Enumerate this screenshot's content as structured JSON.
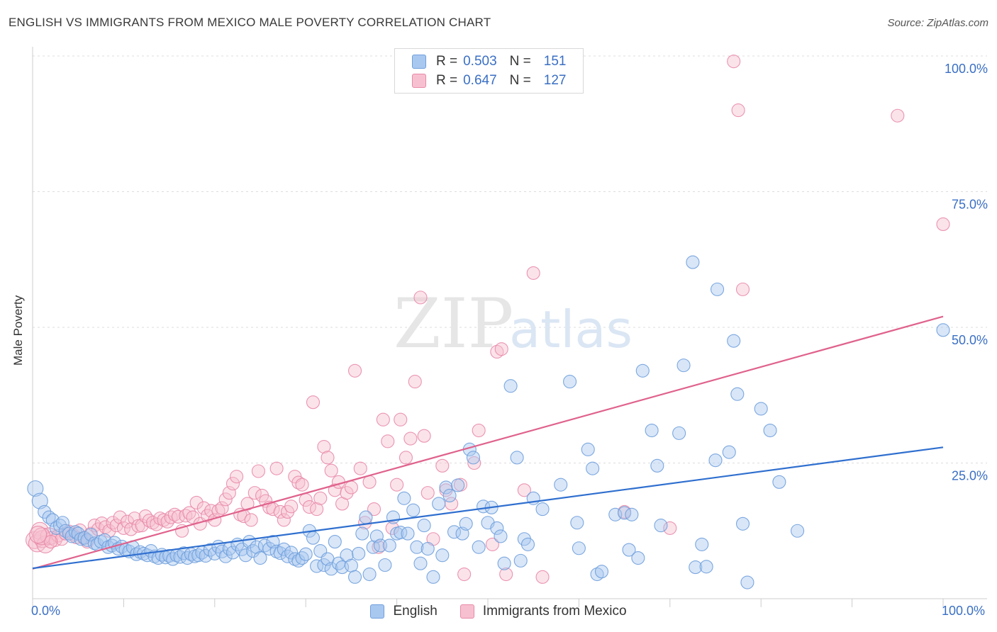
{
  "title": "ENGLISH VS IMMIGRANTS FROM MEXICO MALE POVERTY CORRELATION CHART",
  "source": "Source: ZipAtlas.com",
  "watermark": {
    "zip": "ZIP",
    "atlas": "atlas"
  },
  "legend": {
    "rows": [
      {
        "r_label": "R = ",
        "r_value": "0.503",
        "n_label": "N = ",
        "n_value": "151",
        "color": "#a9c8f0",
        "edge": "#6f9fdc"
      },
      {
        "r_label": "R = ",
        "r_value": "0.647",
        "n_label": "N = ",
        "n_value": "127",
        "color": "#f7c0d0",
        "edge": "#e88aa8"
      }
    ]
  },
  "bottom_legend": {
    "english": "English",
    "mexico": "Immigrants from Mexico"
  },
  "chart_data": {
    "type": "scatter",
    "ylabel": "Male Poverty",
    "xlabel": "",
    "xlim": [
      0,
      100
    ],
    "ylim": [
      0,
      100
    ],
    "x_tick_labels": {
      "left": "0.0%",
      "right": "100.0%"
    },
    "y_tick_labels": [
      "100.0%",
      "75.0%",
      "50.0%",
      "25.0%"
    ],
    "y_tick_values": [
      100,
      75,
      50,
      25
    ],
    "colors": {
      "english": "#6f9fdc",
      "english_fill": "#a9c8f0",
      "english_line": "#2f6fcf",
      "mexico": "#e88aa8",
      "mexico_fill": "#f7c0d0",
      "mexico_line": "#e0628c"
    },
    "series": [
      {
        "name": "English",
        "trend": {
          "x": [
            0,
            100
          ],
          "y": [
            5.6,
            27.9
          ]
        },
        "points": [
          [
            0.3,
            20.3
          ],
          [
            0.8,
            18
          ],
          [
            1.3,
            16
          ],
          [
            1.8,
            15
          ],
          [
            2.2,
            14.5
          ],
          [
            2.6,
            13
          ],
          [
            3,
            13.5
          ],
          [
            3.3,
            14
          ],
          [
            3.6,
            12.5
          ],
          [
            4,
            12
          ],
          [
            4.3,
            11.5
          ],
          [
            4.7,
            12.3
          ],
          [
            5,
            12
          ],
          [
            5.3,
            11
          ],
          [
            5.7,
            11.2
          ],
          [
            6,
            10.8
          ],
          [
            6.4,
            11.8
          ],
          [
            6.8,
            10.2
          ],
          [
            7.1,
            10
          ],
          [
            7.5,
            10.5
          ],
          [
            7.9,
            10.8
          ],
          [
            8.3,
            9.5
          ],
          [
            8.7,
            9.8
          ],
          [
            9,
            10.3
          ],
          [
            9.4,
            9.2
          ],
          [
            9.8,
            9.6
          ],
          [
            10.2,
            9
          ],
          [
            10.6,
            8.7
          ],
          [
            11,
            9.5
          ],
          [
            11.4,
            8.2
          ],
          [
            11.8,
            8.6
          ],
          [
            12.2,
            8.3
          ],
          [
            12.6,
            8
          ],
          [
            13,
            8.8
          ],
          [
            13.4,
            7.8
          ],
          [
            13.8,
            7.5
          ],
          [
            14.2,
            8.1
          ],
          [
            14.6,
            7.6
          ],
          [
            15,
            7.9
          ],
          [
            15.4,
            7.3
          ],
          [
            15.8,
            8
          ],
          [
            16.2,
            7.7
          ],
          [
            16.6,
            8.4
          ],
          [
            17,
            7.5
          ],
          [
            17.4,
            8.2
          ],
          [
            17.8,
            7.8
          ],
          [
            18.2,
            8
          ],
          [
            18.6,
            8.5
          ],
          [
            19,
            7.9
          ],
          [
            19.5,
            9
          ],
          [
            20,
            8.3
          ],
          [
            20.4,
            9.6
          ],
          [
            20.8,
            8.7
          ],
          [
            21.2,
            7.8
          ],
          [
            21.6,
            9.2
          ],
          [
            22,
            8.5
          ],
          [
            22.5,
            10
          ],
          [
            23,
            9.1
          ],
          [
            23.4,
            8
          ],
          [
            23.8,
            10.5
          ],
          [
            24.2,
            8.8
          ],
          [
            24.6,
            9.5
          ],
          [
            25,
            7.5
          ],
          [
            25.5,
            9.8
          ],
          [
            26,
            9.2
          ],
          [
            26.4,
            10.5
          ],
          [
            26.8,
            8.7
          ],
          [
            27.2,
            8.4
          ],
          [
            27.6,
            9.1
          ],
          [
            28,
            7.8
          ],
          [
            28.4,
            8.5
          ],
          [
            28.8,
            7.3
          ],
          [
            29.2,
            7
          ],
          [
            29.6,
            7.5
          ],
          [
            30,
            8.2
          ],
          [
            30.4,
            12.5
          ],
          [
            30.8,
            11.2
          ],
          [
            31.2,
            6
          ],
          [
            31.6,
            8.8
          ],
          [
            32,
            6.2
          ],
          [
            32.4,
            7.3
          ],
          [
            32.8,
            5.5
          ],
          [
            33.2,
            10.5
          ],
          [
            33.6,
            6.5
          ],
          [
            34,
            5.8
          ],
          [
            34.5,
            8
          ],
          [
            35,
            6.1
          ],
          [
            35.4,
            4
          ],
          [
            35.8,
            8.3
          ],
          [
            36.2,
            12
          ],
          [
            36.6,
            15
          ],
          [
            37,
            4.5
          ],
          [
            37.4,
            9.5
          ],
          [
            37.8,
            11.5
          ],
          [
            38.2,
            9.8
          ],
          [
            38.7,
            6.2
          ],
          [
            39.2,
            9.8
          ],
          [
            39.6,
            15
          ],
          [
            40,
            12
          ],
          [
            40.4,
            12.2
          ],
          [
            40.8,
            18.5
          ],
          [
            41.2,
            12
          ],
          [
            41.8,
            16.3
          ],
          [
            42.2,
            9.5
          ],
          [
            42.6,
            6.5
          ],
          [
            43,
            13.5
          ],
          [
            43.4,
            9.2
          ],
          [
            44,
            4
          ],
          [
            44.6,
            17.5
          ],
          [
            45,
            8
          ],
          [
            45.4,
            20.5
          ],
          [
            45.8,
            19
          ],
          [
            46.3,
            12.3
          ],
          [
            46.7,
            20.9
          ],
          [
            47.2,
            12
          ],
          [
            47.6,
            13.8
          ],
          [
            48,
            27.5
          ],
          [
            48.4,
            26
          ],
          [
            49,
            9.5
          ],
          [
            49.5,
            17
          ],
          [
            50,
            14
          ],
          [
            50.4,
            16.8
          ],
          [
            51,
            13
          ],
          [
            51.4,
            11.5
          ],
          [
            51.8,
            6.5
          ],
          [
            52.5,
            39.2
          ],
          [
            53.2,
            26
          ],
          [
            53.6,
            7
          ],
          [
            54,
            11
          ],
          [
            54.4,
            10
          ],
          [
            55,
            18.5
          ],
          [
            56,
            16.5
          ],
          [
            58,
            21
          ],
          [
            59,
            40
          ],
          [
            59.8,
            14
          ],
          [
            60,
            9.3
          ],
          [
            61,
            27.5
          ],
          [
            61.5,
            24
          ],
          [
            62,
            4.5
          ],
          [
            62.5,
            5
          ],
          [
            64,
            15.5
          ],
          [
            65,
            15.8
          ],
          [
            65.5,
            9
          ],
          [
            65.8,
            15.5
          ],
          [
            66.5,
            7.5
          ],
          [
            67,
            42
          ],
          [
            68,
            31
          ],
          [
            68.6,
            24.5
          ],
          [
            69,
            13.5
          ],
          [
            71,
            30.5
          ],
          [
            71.5,
            43
          ],
          [
            72.5,
            62
          ],
          [
            72.8,
            5.8
          ],
          [
            73.5,
            10
          ],
          [
            74,
            5.9
          ],
          [
            75,
            25.5
          ],
          [
            75.2,
            57
          ],
          [
            76.5,
            27
          ],
          [
            77,
            47.5
          ],
          [
            77.4,
            37.7
          ],
          [
            78,
            13.8
          ],
          [
            78.5,
            3
          ],
          [
            80,
            35
          ],
          [
            81,
            31
          ],
          [
            82,
            21.5
          ],
          [
            84,
            12.5
          ],
          [
            100,
            49.5
          ]
        ]
      },
      {
        "name": "Immigrants from Mexico",
        "trend": {
          "x": [
            0,
            100
          ],
          "y": [
            5.5,
            52
          ]
        },
        "points": [
          [
            0.2,
            10.8
          ],
          [
            0.5,
            10.2
          ],
          [
            0.8,
            12.5
          ],
          [
            1.1,
            11
          ],
          [
            1.4,
            10
          ],
          [
            1.8,
            11.5
          ],
          [
            2.1,
            11.2
          ],
          [
            2.5,
            10.8
          ],
          [
            2.8,
            11.6
          ],
          [
            3.2,
            11
          ],
          [
            3.6,
            12
          ],
          [
            4,
            12.4
          ],
          [
            4.4,
            11.8
          ],
          [
            4.8,
            11.3
          ],
          [
            5.2,
            12.6
          ],
          [
            5.6,
            11.2
          ],
          [
            6,
            10.5
          ],
          [
            6.4,
            12
          ],
          [
            6.8,
            13.5
          ],
          [
            7.2,
            12.8
          ],
          [
            7.6,
            13.9
          ],
          [
            8,
            13.2
          ],
          [
            8.4,
            12.5
          ],
          [
            8.8,
            14
          ],
          [
            9.2,
            13.5
          ],
          [
            9.6,
            15
          ],
          [
            10,
            13
          ],
          [
            10.4,
            14.2
          ],
          [
            10.8,
            12.8
          ],
          [
            11.2,
            14.8
          ],
          [
            11.6,
            13.4
          ],
          [
            12,
            13.5
          ],
          [
            12.4,
            15.2
          ],
          [
            12.8,
            14.4
          ],
          [
            13.2,
            14
          ],
          [
            13.6,
            13.7
          ],
          [
            14,
            14.8
          ],
          [
            14.4,
            14.5
          ],
          [
            14.8,
            14.2
          ],
          [
            15.2,
            15
          ],
          [
            15.6,
            15.5
          ],
          [
            16,
            15.1
          ],
          [
            16.4,
            12.5
          ],
          [
            16.8,
            15.3
          ],
          [
            17.2,
            15.8
          ],
          [
            17.6,
            15
          ],
          [
            18,
            17.7
          ],
          [
            18.4,
            13.8
          ],
          [
            18.8,
            16.7
          ],
          [
            19.2,
            15.3
          ],
          [
            19.6,
            16.2
          ],
          [
            20,
            14.5
          ],
          [
            20.4,
            16.2
          ],
          [
            20.8,
            16.7
          ],
          [
            21.2,
            18.3
          ],
          [
            21.6,
            19.5
          ],
          [
            22,
            21.2
          ],
          [
            22.4,
            22.5
          ],
          [
            22.8,
            15.5
          ],
          [
            23.2,
            15.2
          ],
          [
            23.6,
            17.5
          ],
          [
            24,
            14.5
          ],
          [
            24.4,
            19.5
          ],
          [
            24.8,
            23.5
          ],
          [
            25.2,
            19
          ],
          [
            25.6,
            18
          ],
          [
            26,
            16.8
          ],
          [
            26.4,
            16.5
          ],
          [
            26.8,
            24
          ],
          [
            27.2,
            16
          ],
          [
            27.6,
            14.5
          ],
          [
            28,
            16
          ],
          [
            28.4,
            17
          ],
          [
            28.8,
            22.5
          ],
          [
            29.2,
            21.4
          ],
          [
            29.6,
            21
          ],
          [
            30,
            18.2
          ],
          [
            30.4,
            16.9
          ],
          [
            30.8,
            36.2
          ],
          [
            31.2,
            16.5
          ],
          [
            31.6,
            18.5
          ],
          [
            32,
            28
          ],
          [
            32.4,
            26
          ],
          [
            32.8,
            23.6
          ],
          [
            33.2,
            20
          ],
          [
            33.6,
            21.5
          ],
          [
            34,
            17.5
          ],
          [
            34.5,
            19.5
          ],
          [
            35,
            20.5
          ],
          [
            35.4,
            42
          ],
          [
            36,
            24
          ],
          [
            36.5,
            14
          ],
          [
            37,
            21.5
          ],
          [
            37.5,
            16.5
          ],
          [
            38,
            9.5
          ],
          [
            38.5,
            33
          ],
          [
            39,
            29
          ],
          [
            39.5,
            13
          ],
          [
            40,
            21
          ],
          [
            40.4,
            33
          ],
          [
            41,
            26
          ],
          [
            41.5,
            29.5
          ],
          [
            42,
            40
          ],
          [
            42.6,
            55.5
          ],
          [
            43,
            30
          ],
          [
            43.4,
            19.5
          ],
          [
            44,
            11
          ],
          [
            45,
            24.5
          ],
          [
            45.4,
            20
          ],
          [
            46,
            17.5
          ],
          [
            47,
            21
          ],
          [
            47.4,
            4.5
          ],
          [
            48.5,
            25
          ],
          [
            49,
            31
          ],
          [
            50.5,
            10
          ],
          [
            51,
            45.5
          ],
          [
            51.5,
            46
          ],
          [
            52,
            4.5
          ],
          [
            54,
            20
          ],
          [
            55,
            60
          ],
          [
            56,
            4
          ],
          [
            65,
            16
          ],
          [
            70,
            13
          ],
          [
            77,
            99
          ],
          [
            77.5,
            90
          ],
          [
            78,
            57
          ],
          [
            95,
            89
          ],
          [
            100,
            69
          ],
          [
            1,
            11.5
          ],
          [
            2,
            10.5
          ],
          [
            0.6,
            11.8
          ]
        ]
      }
    ]
  }
}
